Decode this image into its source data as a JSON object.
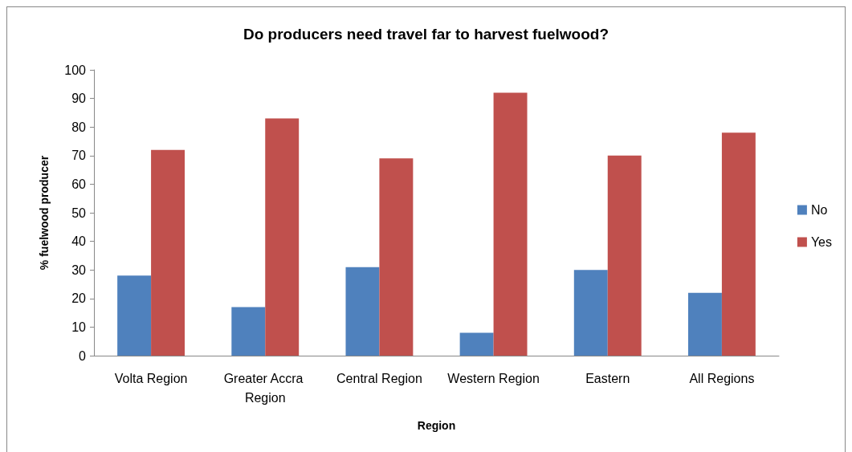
{
  "chart_data": {
    "type": "bar",
    "title": "Do producers need travel far to harvest fuelwood?",
    "xlabel": "Region",
    "ylabel": "% fuelwood producer",
    "categories": [
      "Volta Region",
      "Greater Accra Region",
      "Central Region",
      "Western Region",
      "Eastern",
      "All Regions"
    ],
    "series": [
      {
        "name": "No",
        "color": "#4f81bd",
        "values": [
          28,
          17,
          31,
          8,
          30,
          22
        ]
      },
      {
        "name": "Yes",
        "color": "#c0504d",
        "values": [
          72,
          83,
          69,
          92,
          70,
          78
        ]
      }
    ],
    "ylim": [
      0,
      100
    ],
    "yticks": [
      0,
      10,
      20,
      30,
      40,
      50,
      60,
      70,
      80,
      90,
      100
    ],
    "grid": false,
    "legend": "right"
  }
}
